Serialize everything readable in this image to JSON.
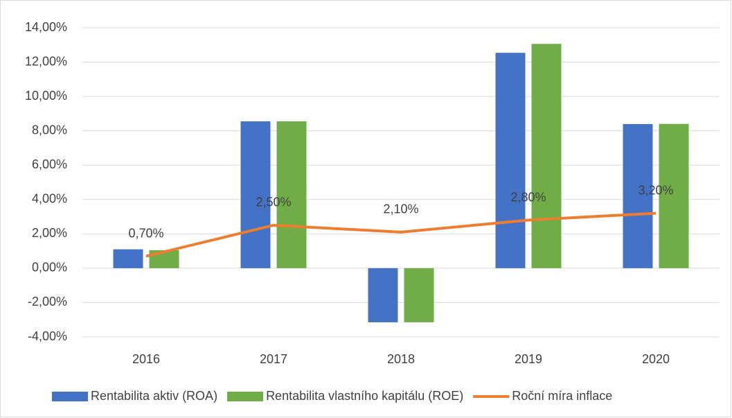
{
  "chart_data": {
    "type": "bar-line",
    "categories": [
      "2016",
      "2017",
      "2018",
      "2019",
      "2020"
    ],
    "series": [
      {
        "name": "Rentabilita aktiv (ROA)",
        "type": "bar",
        "color": "#4472c4",
        "values": [
          1.1,
          8.55,
          -3.15,
          12.54,
          8.39
        ]
      },
      {
        "name": "Rentabilita vlastního kapitálu (ROE)",
        "type": "bar",
        "color": "#70ad47",
        "values": [
          1.05,
          8.55,
          -3.15,
          13.06,
          8.4
        ]
      },
      {
        "name": "Roční míra inflace",
        "type": "line",
        "color": "#ed7d31",
        "values": [
          0.7,
          2.5,
          2.1,
          2.8,
          3.2
        ],
        "value_labels": [
          "0,70%",
          "2,50%",
          "2,10%",
          "2,80%",
          "3,20%"
        ]
      }
    ],
    "ylim": [
      -4,
      14
    ],
    "yticks": [
      {
        "value": -4,
        "label": "-4,00%"
      },
      {
        "value": -2,
        "label": "-2,00%"
      },
      {
        "value": 0,
        "label": "0,00%"
      },
      {
        "value": 2,
        "label": "2,00%"
      },
      {
        "value": 4,
        "label": "4,00%"
      },
      {
        "value": 6,
        "label": "6,00%"
      },
      {
        "value": 8,
        "label": "8,00%"
      },
      {
        "value": 10,
        "label": "10,00%"
      },
      {
        "value": 12,
        "label": "12,00%"
      },
      {
        "value": 14,
        "label": "14,00%"
      }
    ],
    "grid": true,
    "legend": "bottom"
  }
}
